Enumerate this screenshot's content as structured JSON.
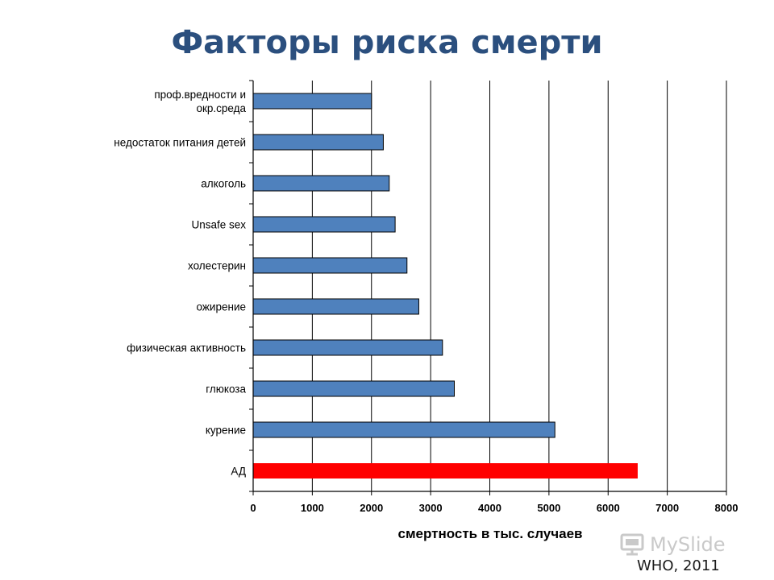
{
  "title": "Факторы риска смерти",
  "source": "WHO, 2011",
  "watermark": "MySlide",
  "colors": {
    "title": "#2b4f7e",
    "bar_default": "#4f81bd",
    "bar_highlight": "#ff0000",
    "bar_outline": "#000000",
    "grid": "#000000",
    "watermark": "#c9c9c9"
  },
  "chart_data": {
    "type": "bar",
    "orientation": "horizontal",
    "categories": [
      "проф.вредности и окр.среда",
      "недостаток питания детей",
      "алкоголь",
      "Unsafe sex",
      "холестерин",
      "ожирение",
      "физическая активность",
      "глюкоза",
      "курение",
      "АД"
    ],
    "category_lines": [
      [
        "проф.вредности и",
        "окр.среда"
      ],
      [
        "недостаток питания детей"
      ],
      [
        "алкоголь"
      ],
      [
        "Unsafe sex"
      ],
      [
        "холестерин"
      ],
      [
        "ожирение"
      ],
      [
        "физическая активность"
      ],
      [
        "глюкоза"
      ],
      [
        "курение"
      ],
      [
        "АД"
      ]
    ],
    "values": [
      2000,
      2200,
      2300,
      2400,
      2600,
      2800,
      3200,
      3400,
      5100,
      6500
    ],
    "highlight_category": "АД",
    "xlabel": "смертность в тыс. случаев",
    "ylabel": "",
    "xlim": [
      0,
      8000
    ],
    "xticks": [
      "0",
      "1000",
      "2000",
      "3000",
      "4000",
      "5000",
      "6000",
      "7000",
      "8000"
    ],
    "grid": "vertical major gridlines"
  }
}
